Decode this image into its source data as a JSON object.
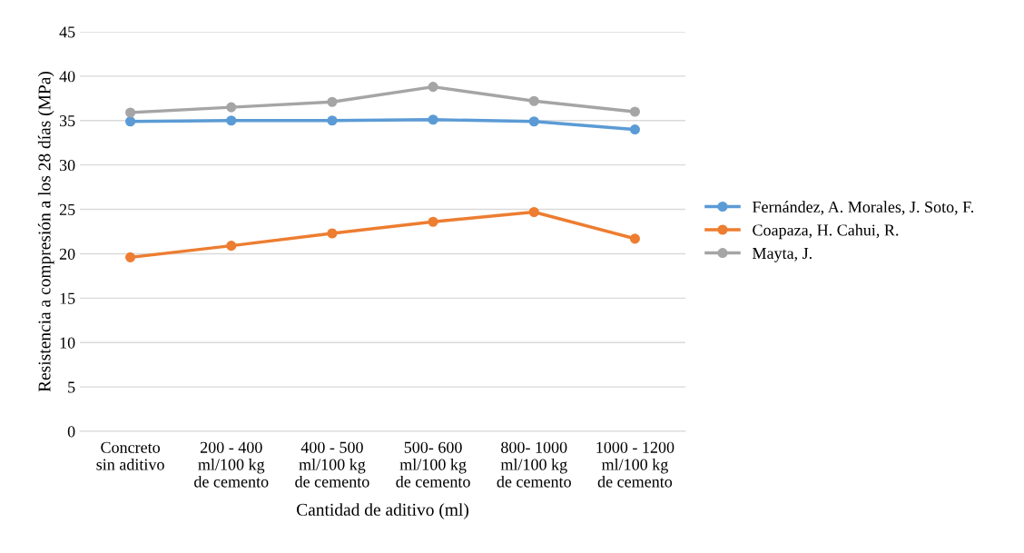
{
  "chart_data": {
    "type": "line",
    "xlabel": "Cantidad de aditivo (ml)",
    "ylabel": "Resistencia a compresión a los 28 días (MPa)",
    "categories": [
      "Concreto\nsin aditivo",
      "200 - 400\nml/100 kg\nde cemento",
      "400 - 500\nml/100 kg\nde cemento",
      "500- 600\nml/100 kg\nde cemento",
      "800- 1000\nml/100 kg\nde cemento",
      "1000 - 1200\nml/100 kg\nde cemento"
    ],
    "series": [
      {
        "name": "Fernández, A. Morales, J. Soto, F.",
        "color": "#5b9bd5",
        "values": [
          34.9,
          35.0,
          35.0,
          35.1,
          34.9,
          34.0
        ]
      },
      {
        "name": "Coapaza, H. Cahui, R.",
        "color": "#ed7d31",
        "values": [
          19.6,
          20.9,
          22.3,
          23.6,
          24.7,
          21.7
        ]
      },
      {
        "name": "Mayta, J.",
        "color": "#a5a5a5",
        "values": [
          35.9,
          36.5,
          37.1,
          38.8,
          37.2,
          36.0
        ]
      }
    ],
    "ylim": [
      0,
      45
    ],
    "yticks": [
      0,
      5,
      10,
      15,
      20,
      25,
      30,
      35,
      40,
      45
    ],
    "grid": "y",
    "legend": "right",
    "marker": "circle",
    "line_style": "solid"
  }
}
